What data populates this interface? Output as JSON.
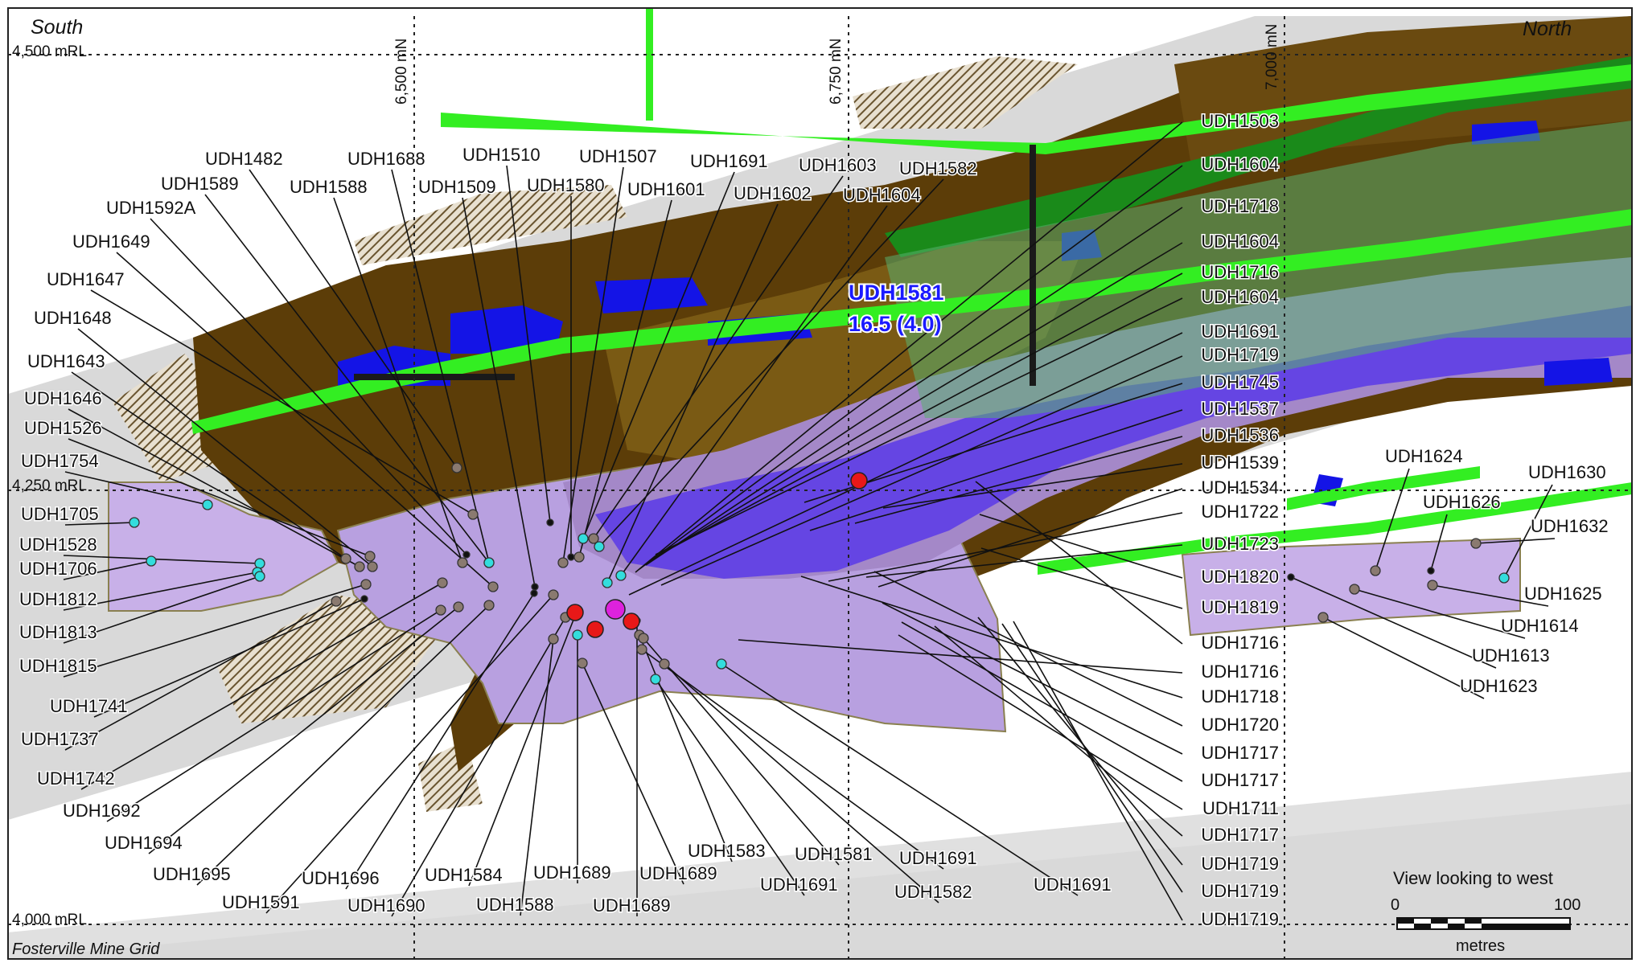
{
  "corner_labels": {
    "south": "South",
    "north": "North",
    "grid": "Fosterville Mine Grid"
  },
  "elevation_labels": [
    "4,500 mRL",
    "4,250 mRL",
    "4,000 mRL"
  ],
  "northing_labels": [
    "6,500 mN",
    "6,750 mN",
    "7,000 mN"
  ],
  "highlight": {
    "hole": "UDH1581",
    "intercept": "16.5 (4.0)",
    "color": "#1a1aff"
  },
  "view": {
    "caption": "View looking to west",
    "scale_start": "0",
    "scale_end": "100",
    "units": "metres"
  },
  "colors": {
    "host_rock": "#5c3d08",
    "high_grade": "#1414e6",
    "fault": "#33ee22",
    "stope": "#b8a0e0",
    "dark_green": "#1a8a1a",
    "pierce_cyan": "#33dddd",
    "pierce_grey": "#8a7a70",
    "significant_red": "#e81818",
    "highlight_magenta": "#dd22dd"
  },
  "drill_holes_left": [
    "UDH1482",
    "UDH1688",
    "UDH1510",
    "UDH1507",
    "UDH1691",
    "UDH1603",
    "UDH1582",
    "UDH1589",
    "UDH1588",
    "UDH1509",
    "UDH1580",
    "UDH1601",
    "UDH1602",
    "UDH1604",
    "UDH1592A",
    "UDH1649",
    "UDH1647",
    "UDH1648",
    "UDH1643",
    "UDH1646",
    "UDH1526",
    "UDH1754",
    "UDH1705",
    "UDH1528",
    "UDH1706",
    "UDH1812",
    "UDH1813",
    "UDH1815",
    "UDH1741",
    "UDH1737",
    "UDH1742",
    "UDH1692",
    "UDH1694",
    "UDH1695",
    "UDH1696",
    "UDH1591",
    "UDH1690",
    "UDH1584",
    "UDH1588",
    "UDH1689",
    "UDH1689",
    "UDH1689",
    "UDH1583",
    "UDH1581",
    "UDH1691",
    "UDH1691",
    "UDH1582",
    "UDH1691"
  ],
  "drill_holes_right": [
    "UDH1503",
    "UDH1604",
    "UDH1718",
    "UDH1604",
    "UDH1716",
    "UDH1604",
    "UDH1691",
    "UDH1719",
    "UDH1745",
    "UDH1537",
    "UDH1536",
    "UDH1539",
    "UDH1534",
    "UDH1722",
    "UDH1723",
    "UDH1820",
    "UDH1819",
    "UDH1716",
    "UDH1716",
    "UDH1718",
    "UDH1720",
    "UDH1717",
    "UDH1717",
    "UDH1711",
    "UDH1717",
    "UDH1719",
    "UDH1719",
    "UDH1719"
  ],
  "drill_holes_north": [
    "UDH1624",
    "UDH1630",
    "UDH1626",
    "UDH1632",
    "UDH1625",
    "UDH1614",
    "UDH1613",
    "UDH1623"
  ]
}
